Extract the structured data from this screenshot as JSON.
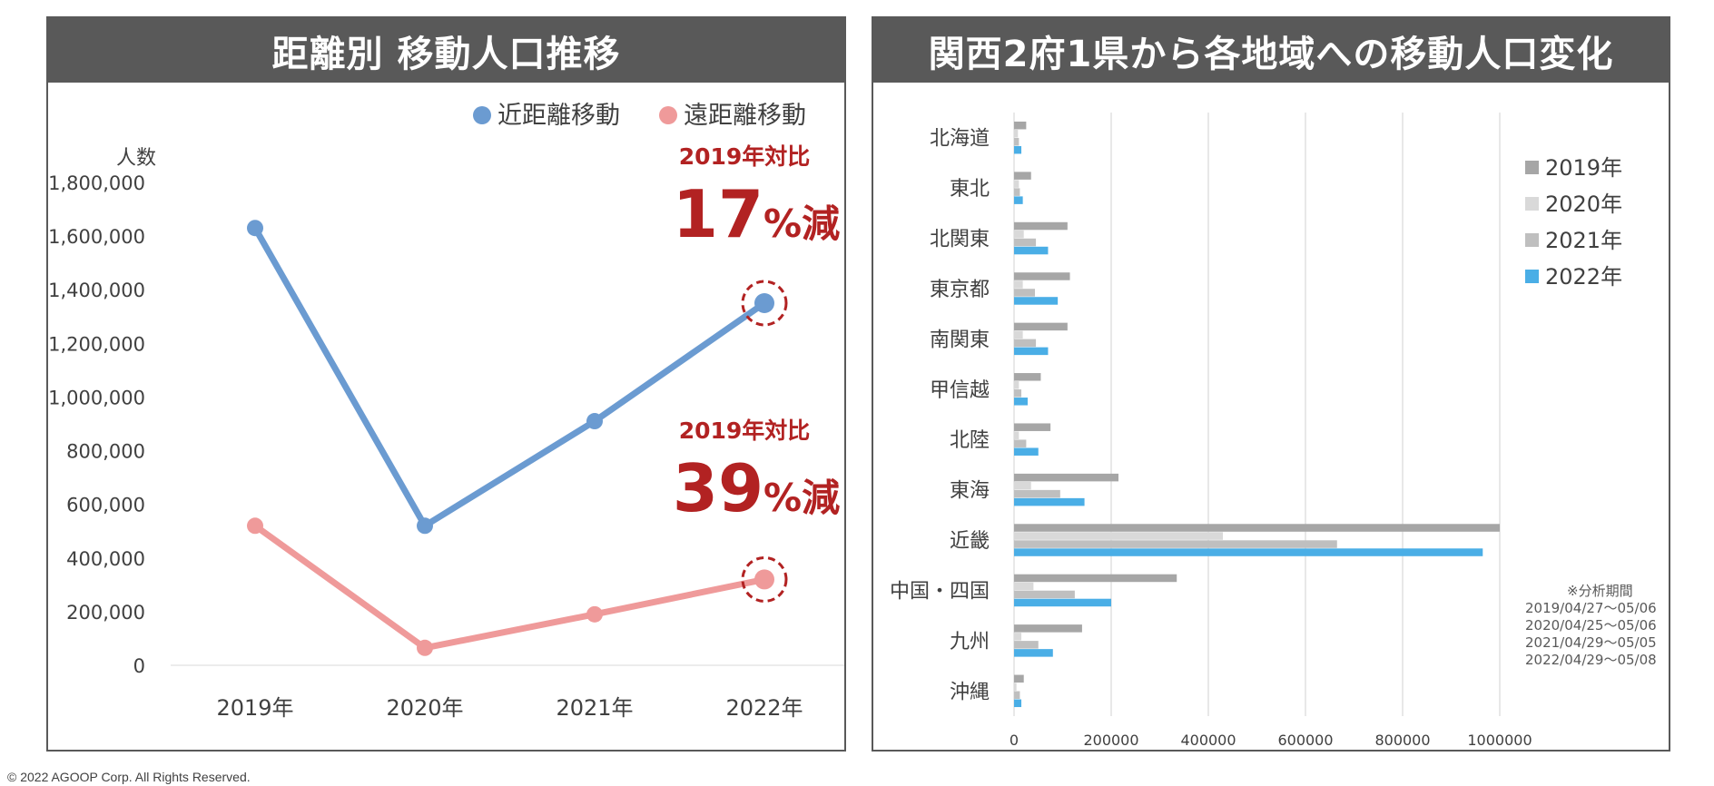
{
  "colors": {
    "near": "#6b9bd1",
    "far": "#ef9a9a",
    "accent": "#b22222",
    "y2019": "#a6a6a6",
    "y2020": "#d9d9d9",
    "y2021": "#bfbfbf",
    "y2022": "#4aaee6"
  },
  "footer": {
    "copyright": "© 2022 AGOOP Corp. All Rights Reserved."
  },
  "left": {
    "title": "距離別 移動人口推移",
    "annotations": [
      {
        "label": "2019年対比",
        "pct": "17",
        "suffix": "%減"
      },
      {
        "label": "2019年対比",
        "pct": "39",
        "suffix": "%減"
      }
    ]
  },
  "right": {
    "title": "関西2府1県から各地域への移動人口変化",
    "note": [
      "※分析期間",
      "2019/04/27～05/06",
      "2020/04/25～05/06",
      "2021/04/29～05/05",
      "2022/04/29～05/08"
    ]
  },
  "chart_data": [
    {
      "type": "line",
      "title": "距離別 移動人口推移",
      "ylabel": "人数",
      "categories": [
        "2019年",
        "2020年",
        "2021年",
        "2022年"
      ],
      "ylim": [
        0,
        1800000
      ],
      "yticks": [
        "0",
        "200,000",
        "400,000",
        "600,000",
        "800,000",
        "1,000,000",
        "1,200,000",
        "1,400,000",
        "1,600,000",
        "1,800,000"
      ],
      "legend": "top-right",
      "series": [
        {
          "name": "近距離移動",
          "values": [
            1630000,
            520000,
            910000,
            1350000
          ]
        },
        {
          "name": "遠距離移動",
          "values": [
            520000,
            65000,
            190000,
            320000
          ]
        }
      ]
    },
    {
      "type": "bar",
      "orientation": "horizontal",
      "title": "関西2府1県から各地域への移動人口変化",
      "categories": [
        "北海道",
        "東北",
        "北関東",
        "東京都",
        "南関東",
        "甲信越",
        "北陸",
        "東海",
        "近畿",
        "中国・四国",
        "九州",
        "沖縄"
      ],
      "xlim": [
        0,
        1000000
      ],
      "xticks": [
        "0",
        "200000",
        "400000",
        "600000",
        "800000",
        "1000000"
      ],
      "grid": true,
      "legend": "right",
      "series": [
        {
          "name": "2019年",
          "values": [
            25000,
            35000,
            110000,
            115000,
            110000,
            55000,
            75000,
            215000,
            1000000,
            335000,
            140000,
            20000
          ]
        },
        {
          "name": "2020年",
          "values": [
            8000,
            10000,
            20000,
            18000,
            18000,
            10000,
            10000,
            35000,
            430000,
            40000,
            15000,
            5000
          ]
        },
        {
          "name": "2021年",
          "values": [
            10000,
            12000,
            45000,
            43000,
            45000,
            15000,
            25000,
            95000,
            665000,
            125000,
            50000,
            12000
          ]
        },
        {
          "name": "2022年",
          "values": [
            15000,
            18000,
            70000,
            90000,
            70000,
            28000,
            50000,
            145000,
            965000,
            200000,
            80000,
            15000
          ]
        }
      ]
    }
  ]
}
